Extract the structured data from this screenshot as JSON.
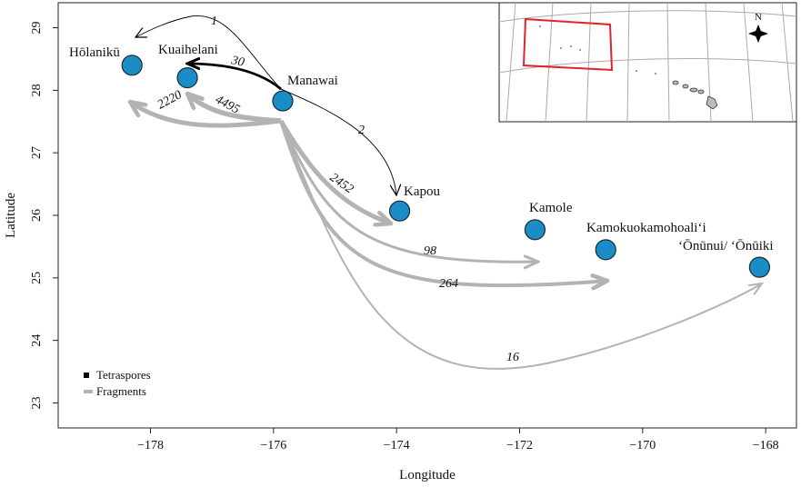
{
  "map": {
    "xlabel": "Longitude",
    "ylabel": "Latitude",
    "xlim": [
      -179.5,
      -167.5
    ],
    "ylim": [
      22.6,
      29.4
    ],
    "xticks": [
      {
        "value": -178,
        "label": "−178"
      },
      {
        "value": -176,
        "label": "−176"
      },
      {
        "value": -174,
        "label": "−174"
      },
      {
        "value": -172,
        "label": "−172"
      },
      {
        "value": -170,
        "label": "−170"
      },
      {
        "value": -168,
        "label": "−168"
      }
    ],
    "yticks": [
      {
        "value": 23,
        "label": "23"
      },
      {
        "value": 24,
        "label": "24"
      },
      {
        "value": 25,
        "label": "25"
      },
      {
        "value": 26,
        "label": "26"
      },
      {
        "value": 27,
        "label": "27"
      },
      {
        "value": 28,
        "label": "28"
      },
      {
        "value": 29,
        "label": "29"
      }
    ],
    "site_color": "#1a8cc6",
    "tetraspore_color": "#000000",
    "fragment_color": "#b3b3b3",
    "sites": [
      {
        "name": "Hōlanikū",
        "lon": -178.3,
        "lat": 28.4
      },
      {
        "name": "Kuaihelani",
        "lon": -177.4,
        "lat": 28.2
      },
      {
        "name": "Manawai",
        "lon": -175.85,
        "lat": 27.83
      },
      {
        "name": "Kapou",
        "lon": -173.95,
        "lat": 26.07
      },
      {
        "name": "Kamole",
        "lon": -171.75,
        "lat": 25.77
      },
      {
        "name": "Kamokuokamohoali‘i",
        "lon": -170.6,
        "lat": 25.45
      },
      {
        "name": "‘Ōnūnui/ ‘Ōnūiki",
        "lon": -168.1,
        "lat": 25.17
      }
    ],
    "flows": [
      {
        "type": "Tetraspores",
        "from": "Manawai",
        "to": "Hōlanikū",
        "count": "1"
      },
      {
        "type": "Tetraspores",
        "from": "Manawai",
        "to": "Kuaihelani",
        "count": "30"
      },
      {
        "type": "Tetraspores",
        "from": "Manawai",
        "to": "Kapou",
        "count": "2"
      },
      {
        "type": "Fragments",
        "from": "Manawai",
        "to": "Hōlanikū",
        "count": "2220"
      },
      {
        "type": "Fragments",
        "from": "Manawai",
        "to": "Kuaihelani",
        "count": "4495"
      },
      {
        "type": "Fragments",
        "from": "Manawai",
        "to": "Kapou",
        "count": "2452"
      },
      {
        "type": "Fragments",
        "from": "Manawai",
        "to": "Kamole",
        "count": "98"
      },
      {
        "type": "Fragments",
        "from": "Manawai",
        "to": "Kamokuokamohoali‘i",
        "count": "264"
      },
      {
        "type": "Fragments",
        "from": "Manawai",
        "to": "‘Ōnūnui/ ‘Ōnūiki",
        "count": "16"
      }
    ],
    "legend": [
      {
        "label": "Tetraspores",
        "color": "#000000"
      },
      {
        "label": "Fragments",
        "color": "#b3b3b3"
      }
    ],
    "inset": {
      "north_label": "N",
      "study_area_color": "#e0232a"
    }
  }
}
